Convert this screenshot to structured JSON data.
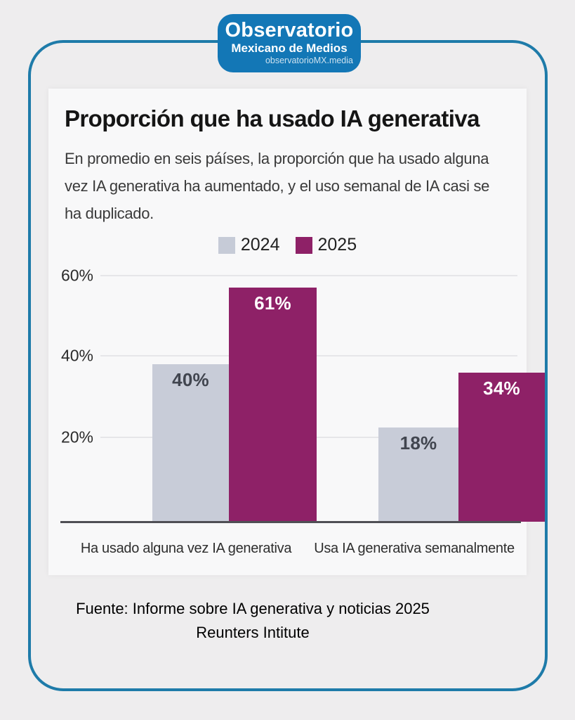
{
  "logo": {
    "line1": "Observatorio",
    "line2": "Mexicano de Medios",
    "line3": "observatorioMX.media"
  },
  "panel": {
    "title": "Proporción que ha usado IA generativa",
    "subtitle_lines": [
      "En promedio en seis páíses, la proporción que ha usado alguna",
      "vez IA generativa ha aumentado, y el uso semanal de IA casi se",
      "ha duplicado."
    ]
  },
  "chart_data": {
    "type": "bar",
    "title": "Proporción que ha usado IA generativa",
    "subtitle": "En promedio en seis páíses, la proporción que ha usado alguna vez IA generativa ha aumentado, y el uso semanal de IA casi se ha duplicado.",
    "categories": [
      "Ha usado alguna vez IA generativa",
      "Usa IA generativa semanalmente"
    ],
    "series": [
      {
        "name": "2024",
        "values": [
          40,
          18
        ]
      },
      {
        "name": "2025",
        "values": [
          61,
          34
        ]
      }
    ],
    "bar_labels": [
      [
        "40%",
        "18%"
      ],
      [
        "61%",
        "34%"
      ]
    ],
    "yticks": [
      "60%",
      "40%",
      "20%"
    ],
    "ylim": [
      0,
      65
    ],
    "xlabel": "",
    "ylabel": "",
    "grid": true,
    "legend_position": "top-center",
    "colors": {
      "2024": "#c8ccd8",
      "2025": "#8e2167"
    },
    "visual_heights_pct": {
      "2024": [
        39,
        23
      ],
      "2025": [
        58,
        37
      ]
    }
  },
  "footer": {
    "line1": "Fuente: Informe sobre IA generativa y noticias 2025",
    "line2": "Reunters Intitute"
  },
  "colors": {
    "card_border_blue": "#1e7ba9",
    "badge_blue": "#1377b6",
    "bar_2024_gray": "#c8ccd8",
    "bar_2025_magenta": "#8e2167",
    "panel_background": "#f8f8f9",
    "page_background": "#eeedee"
  }
}
